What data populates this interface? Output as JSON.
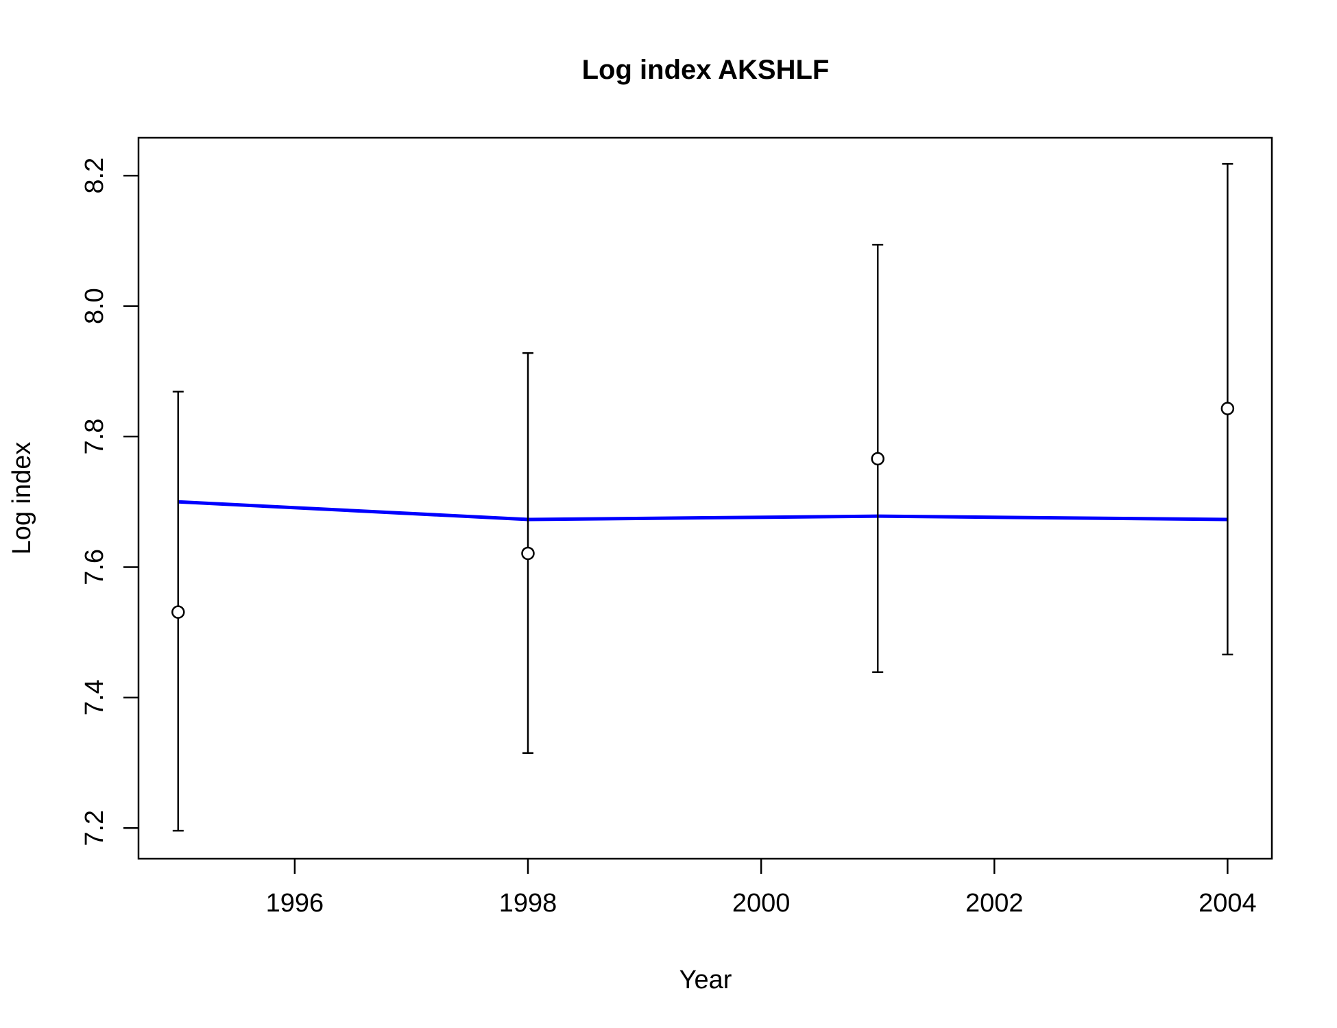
{
  "chart_data": {
    "type": "scatter",
    "title": "Log index AKSHLF",
    "xlabel": "Year",
    "ylabel": "Log index",
    "xlim": [
      1994.66,
      2004.38
    ],
    "ylim": [
      7.153,
      8.258
    ],
    "x_ticks": [
      1996,
      1998,
      2000,
      2002,
      2004
    ],
    "x_tick_labels": [
      "1996",
      "1998",
      "2000",
      "2002",
      "2004"
    ],
    "y_ticks": [
      7.2,
      7.4,
      7.6,
      7.8,
      8.0,
      8.2
    ],
    "y_tick_labels": [
      "7.2",
      "7.4",
      "7.6",
      "7.8",
      "8.0",
      "8.2"
    ],
    "grid": false,
    "legend": "none",
    "series": [
      {
        "type": "points-with-error-bars",
        "x": [
          1995,
          1998,
          2001,
          2004
        ],
        "y": [
          7.531,
          7.621,
          7.766,
          7.843
        ],
        "lower": [
          7.196,
          7.315,
          7.439,
          7.466
        ],
        "upper": [
          7.869,
          7.928,
          8.094,
          8.218
        ],
        "color": "#000000"
      },
      {
        "type": "line",
        "x": [
          1995,
          1998,
          2001,
          2004
        ],
        "y": [
          7.7,
          7.673,
          7.678,
          7.673
        ],
        "color": "#0000ff"
      }
    ]
  }
}
